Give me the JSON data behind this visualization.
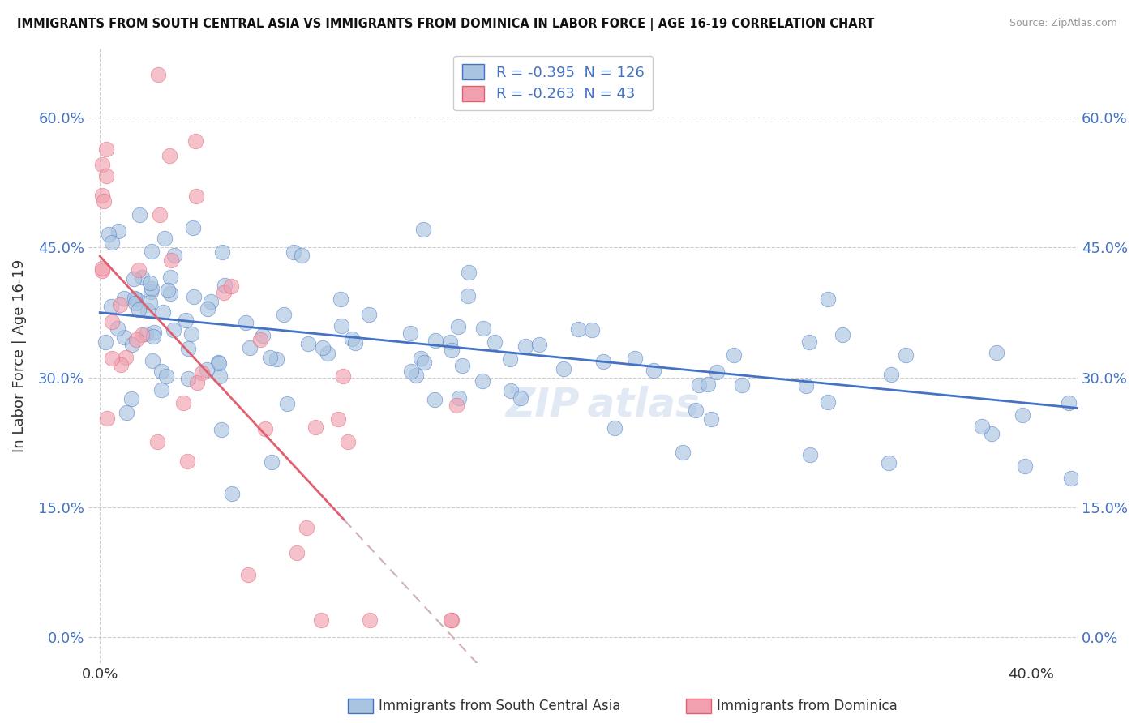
{
  "title": "IMMIGRANTS FROM SOUTH CENTRAL ASIA VS IMMIGRANTS FROM DOMINICA IN LABOR FORCE | AGE 16-19 CORRELATION CHART",
  "source": "Source: ZipAtlas.com",
  "ylabel": "In Labor Force | Age 16-19",
  "xlim": [
    -0.005,
    0.42
  ],
  "ylim": [
    -0.03,
    0.68
  ],
  "yticks": [
    0.0,
    0.15,
    0.3,
    0.45,
    0.6
  ],
  "ytick_labels": [
    "0.0%",
    "15.0%",
    "30.0%",
    "45.0%",
    "60.0%"
  ],
  "xtick_left": "0.0%",
  "xtick_right": "40.0%",
  "blue_R": -0.395,
  "blue_N": 126,
  "pink_R": -0.263,
  "pink_N": 43,
  "blue_color": "#a8c4e0",
  "pink_color": "#f0a0b0",
  "blue_line_color": "#4472c4",
  "pink_line_color": "#e06070",
  "pink_dash_color": "#d0b0b8",
  "legend_label_blue": "Immigrants from South Central Asia",
  "legend_label_pink": "Immigrants from Dominica"
}
